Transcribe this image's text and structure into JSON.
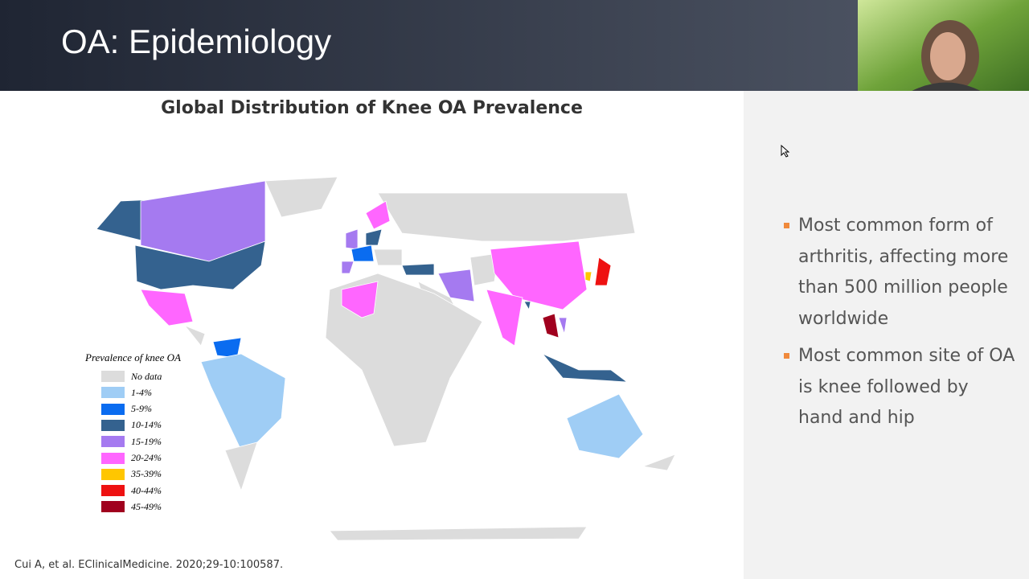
{
  "header": {
    "title": "OA: Epidemiology"
  },
  "map": {
    "title": "Global Distribution of Knee OA Prevalence",
    "legend_title": "Prevalence of knee OA",
    "legend": [
      {
        "label": "No data",
        "color": "#dcdcdc"
      },
      {
        "label": "1-4%",
        "color": "#9fcdf5"
      },
      {
        "label": "5-9%",
        "color": "#0a6cf0"
      },
      {
        "label": "10-14%",
        "color": "#34628f"
      },
      {
        "label": "15-19%",
        "color": "#a57af0"
      },
      {
        "label": "20-24%",
        "color": "#ff66ff"
      },
      {
        "label": "35-39%",
        "color": "#ffc600"
      },
      {
        "label": "40-44%",
        "color": "#ee1111"
      },
      {
        "label": "45-49%",
        "color": "#a0001e"
      }
    ]
  },
  "bullets": [
    "Most common form of arthritis, affecting more than 500 million people worldwide",
    "Most common site of OA is knee followed by hand and hip"
  ],
  "citation": "Cui A, et al. EClinicalMedicine. 2020;29-10:100587."
}
